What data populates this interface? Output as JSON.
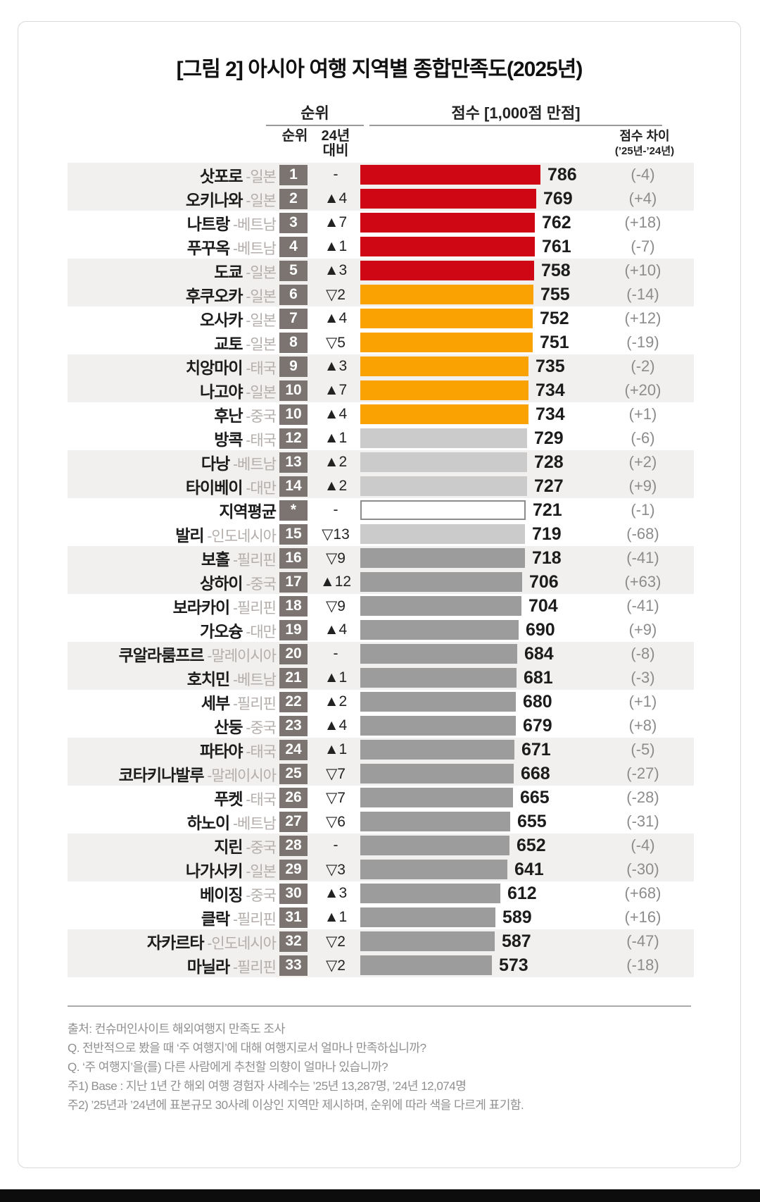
{
  "title": "[그림 2] 아시아 여행 지역별 종합만족도(2025년)",
  "header": {
    "rank_group_label": "순위",
    "score_group_label": "점수 [1,000점 만점]",
    "rank_sub_label": "순위",
    "change_sub_label_line1": "24년",
    "change_sub_label_line2": "대비",
    "diff_label_line1": "점수 차이",
    "diff_label_line2": "(’25년-’24년)"
  },
  "chart_data": {
    "type": "bar",
    "orientation": "horizontal",
    "title": "아시아 여행 지역별 종합만족도(2025년)",
    "score_scale_label": "점수 [1,000점 만점]",
    "score_max": 1000,
    "bar_scale_max": 786,
    "colors": {
      "red_ranks_1_5": "#cf0613",
      "orange_ranks_6_11": "#f9a201",
      "lightgray_ranks_12_15": "#cbcbcb",
      "midgray_ranks_16_33": "#9c9c9c",
      "average_bar_border": "#8c8c8c",
      "rank_badge": "#7b7470",
      "row_band": "#f1f0ee"
    },
    "rows": [
      {
        "name": "삿포로",
        "country": "일본",
        "rank": "1",
        "change": "-",
        "score": 786,
        "diff": "(-4)",
        "group": "red"
      },
      {
        "name": "오키나와",
        "country": "일본",
        "rank": "2",
        "change": "▲4",
        "score": 769,
        "diff": "(+4)",
        "group": "red"
      },
      {
        "name": "나트랑",
        "country": "베트남",
        "rank": "3",
        "change": "▲7",
        "score": 762,
        "diff": "(+18)",
        "group": "red"
      },
      {
        "name": "푸꾸옥",
        "country": "베트남",
        "rank": "4",
        "change": "▲1",
        "score": 761,
        "diff": "(-7)",
        "group": "red"
      },
      {
        "name": "도쿄",
        "country": "일본",
        "rank": "5",
        "change": "▲3",
        "score": 758,
        "diff": "(+10)",
        "group": "red"
      },
      {
        "name": "후쿠오카",
        "country": "일본",
        "rank": "6",
        "change": "▽2",
        "score": 755,
        "diff": "(-14)",
        "group": "orange"
      },
      {
        "name": "오사카",
        "country": "일본",
        "rank": "7",
        "change": "▲4",
        "score": 752,
        "diff": "(+12)",
        "group": "orange"
      },
      {
        "name": "교토",
        "country": "일본",
        "rank": "8",
        "change": "▽5",
        "score": 751,
        "diff": "(-19)",
        "group": "orange"
      },
      {
        "name": "치앙마이",
        "country": "태국",
        "rank": "9",
        "change": "▲3",
        "score": 735,
        "diff": "(-2)",
        "group": "orange"
      },
      {
        "name": "나고야",
        "country": "일본",
        "rank": "10",
        "change": "▲7",
        "score": 734,
        "diff": "(+20)",
        "group": "orange"
      },
      {
        "name": "후난",
        "country": "중국",
        "rank": "10",
        "change": "▲4",
        "score": 734,
        "diff": "(+1)",
        "group": "orange"
      },
      {
        "name": "방콕",
        "country": "태국",
        "rank": "12",
        "change": "▲1",
        "score": 729,
        "diff": "(-6)",
        "group": "light"
      },
      {
        "name": "다낭",
        "country": "베트남",
        "rank": "13",
        "change": "▲2",
        "score": 728,
        "diff": "(+2)",
        "group": "light"
      },
      {
        "name": "타이베이",
        "country": "대만",
        "rank": "14",
        "change": "▲2",
        "score": 727,
        "diff": "(+9)",
        "group": "light"
      },
      {
        "name": "지역평균",
        "country": "",
        "rank": "*",
        "change": "-",
        "score": 721,
        "diff": "(-1)",
        "group": "avg"
      },
      {
        "name": "발리",
        "country": "인도네시아",
        "rank": "15",
        "change": "▽13",
        "score": 719,
        "diff": "(-68)",
        "group": "light"
      },
      {
        "name": "보홀",
        "country": "필리핀",
        "rank": "16",
        "change": "▽9",
        "score": 718,
        "diff": "(-41)",
        "group": "mid"
      },
      {
        "name": "상하이",
        "country": "중국",
        "rank": "17",
        "change": "▲12",
        "score": 706,
        "diff": "(+63)",
        "group": "mid"
      },
      {
        "name": "보라카이",
        "country": "필리핀",
        "rank": "18",
        "change": "▽9",
        "score": 704,
        "diff": "(-41)",
        "group": "mid"
      },
      {
        "name": "가오슝",
        "country": "대만",
        "rank": "19",
        "change": "▲4",
        "score": 690,
        "diff": "(+9)",
        "group": "mid"
      },
      {
        "name": "쿠알라룸프르",
        "country": "말레이시아",
        "rank": "20",
        "change": "-",
        "score": 684,
        "diff": "(-8)",
        "group": "mid"
      },
      {
        "name": "호치민",
        "country": "베트남",
        "rank": "21",
        "change": "▲1",
        "score": 681,
        "diff": "(-3)",
        "group": "mid"
      },
      {
        "name": "세부",
        "country": "필리핀",
        "rank": "22",
        "change": "▲2",
        "score": 680,
        "diff": "(+1)",
        "group": "mid"
      },
      {
        "name": "산둥",
        "country": "중국",
        "rank": "23",
        "change": "▲4",
        "score": 679,
        "diff": "(+8)",
        "group": "mid"
      },
      {
        "name": "파타야",
        "country": "태국",
        "rank": "24",
        "change": "▲1",
        "score": 671,
        "diff": "(-5)",
        "group": "mid"
      },
      {
        "name": "코타키나발루",
        "country": "말레이시아",
        "rank": "25",
        "change": "▽7",
        "score": 668,
        "diff": "(-27)",
        "group": "mid"
      },
      {
        "name": "푸켓",
        "country": "태국",
        "rank": "26",
        "change": "▽7",
        "score": 665,
        "diff": "(-28)",
        "group": "mid"
      },
      {
        "name": "하노이",
        "country": "베트남",
        "rank": "27",
        "change": "▽6",
        "score": 655,
        "diff": "(-31)",
        "group": "mid"
      },
      {
        "name": "지린",
        "country": "중국",
        "rank": "28",
        "change": "-",
        "score": 652,
        "diff": "(-4)",
        "group": "mid"
      },
      {
        "name": "나가사키",
        "country": "일본",
        "rank": "29",
        "change": "▽3",
        "score": 641,
        "diff": "(-30)",
        "group": "mid"
      },
      {
        "name": "베이징",
        "country": "중국",
        "rank": "30",
        "change": "▲3",
        "score": 612,
        "diff": "(+68)",
        "group": "mid"
      },
      {
        "name": "클락",
        "country": "필리핀",
        "rank": "31",
        "change": "▲1",
        "score": 589,
        "diff": "(+16)",
        "group": "mid"
      },
      {
        "name": "자카르타",
        "country": "인도네시아",
        "rank": "32",
        "change": "▽2",
        "score": 587,
        "diff": "(-47)",
        "group": "mid"
      },
      {
        "name": "마닐라",
        "country": "필리핀",
        "rank": "33",
        "change": "▽2",
        "score": 573,
        "diff": "(-18)",
        "group": "mid"
      }
    ]
  },
  "footnotes": [
    "출처: 컨슈머인사이트 해외여행지 만족도 조사",
    "Q. 전반적으로 봤을 때 ‘주 여행지’에 대해 여행지로서 얼마나 만족하십니까?",
    "Q. ‘주 여행지’을(를) 다른 사람에게 추천할 의향이 얼마나 있습니까?",
    "주1) Base : 지난 1년 간 해외 여행 경험자 사례수는 ’25년 13,287명, ’24년 12,074명",
    "주2) ’25년과 ’24년에 표본규모 30사례 이상인 지역만 제시하며, 순위에 따라 색을 다르게 표기함."
  ]
}
